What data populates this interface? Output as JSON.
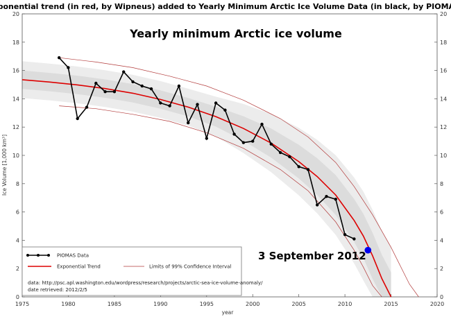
{
  "chart_data": {
    "type": "line",
    "title": "Exponential trend (in red, by Wipneus) added to Yearly Minimum Arctic Ice Volume Data (in black, by PIOMAS)",
    "subtitle": "Yearly minimum Arctic ice volume",
    "xlabel": "year",
    "ylabel": "Ice Volume [1,000 km³]",
    "xlim": [
      1975,
      2020
    ],
    "ylim": [
      0,
      20
    ],
    "xticks": [
      1975,
      1980,
      1985,
      1990,
      1995,
      2000,
      2005,
      2010,
      2015,
      2020
    ],
    "yticks": [
      0,
      2,
      4,
      6,
      8,
      10,
      12,
      14,
      16,
      18,
      20
    ],
    "grid": false,
    "series": [
      {
        "name": "PIOMAS Data",
        "color": "#000000",
        "x": [
          1979,
          1980,
          1981,
          1982,
          1983,
          1984,
          1985,
          1986,
          1987,
          1988,
          1989,
          1990,
          1991,
          1992,
          1993,
          1994,
          1995,
          1996,
          1997,
          1998,
          1999,
          2000,
          2001,
          2002,
          2003,
          2004,
          2005,
          2006,
          2007,
          2008,
          2009,
          2010,
          2011
        ],
        "y": [
          16.9,
          16.2,
          12.6,
          13.4,
          15.1,
          14.5,
          14.5,
          15.9,
          15.2,
          14.9,
          14.7,
          13.7,
          13.5,
          14.9,
          12.3,
          13.6,
          11.2,
          13.7,
          13.2,
          11.5,
          10.9,
          11.0,
          12.2,
          10.8,
          10.2,
          9.9,
          9.2,
          9.0,
          6.5,
          7.1,
          6.9,
          4.4,
          4.1
        ]
      },
      {
        "name": "Exponential Trend",
        "color": "#dd0000",
        "x": [
          1975,
          1978,
          1981,
          1984,
          1987,
          1990,
          1993,
          1996,
          1999,
          2002,
          2005,
          2007,
          2009,
          2011,
          2012,
          2013,
          2014,
          2015
        ],
        "y": [
          15.35,
          15.18,
          14.98,
          14.72,
          14.39,
          13.95,
          13.41,
          12.74,
          11.9,
          10.87,
          9.56,
          8.5,
          7.2,
          5.4,
          4.3,
          2.9,
          1.3,
          0.0
        ]
      },
      {
        "name": "Limits of 99% Confidence Interval",
        "color": "#b23a3a",
        "x": [
          1979,
          1983,
          1987,
          1991,
          1995,
          1999,
          2003,
          2006,
          2009,
          2011,
          2013,
          2015,
          2017,
          2018
        ],
        "y": [
          16.9,
          16.6,
          16.2,
          15.6,
          14.9,
          13.9,
          12.6,
          11.3,
          9.5,
          7.8,
          5.8,
          3.5,
          0.9,
          0.0
        ]
      },
      {
        "name": "Limits of 99% Confidence Interval (lower)",
        "color": "#b23a3a",
        "x": [
          1979,
          1983,
          1987,
          1991,
          1995,
          1999,
          2003,
          2006,
          2009,
          2011,
          2012,
          2013,
          2014
        ],
        "y": [
          13.5,
          13.3,
          12.9,
          12.4,
          11.6,
          10.5,
          9.0,
          7.5,
          5.3,
          3.3,
          2.1,
          0.8,
          0.0
        ]
      }
    ],
    "highlight_point": {
      "x": 2012.5,
      "y": 3.3,
      "color": "#0000ee",
      "label": "3 September 2012"
    },
    "legend": {
      "placement": "bottom-left",
      "items": [
        "PIOMAS Data",
        "Exponential Trend",
        "Limits of 99% Confidence Interval"
      ],
      "note": "data: http://psc.apl.washington.edu/wordpress/research/projects/arctic-sea-ice-volume-anomaly/",
      "note2": "date retrieved: 2012/2/5"
    }
  }
}
